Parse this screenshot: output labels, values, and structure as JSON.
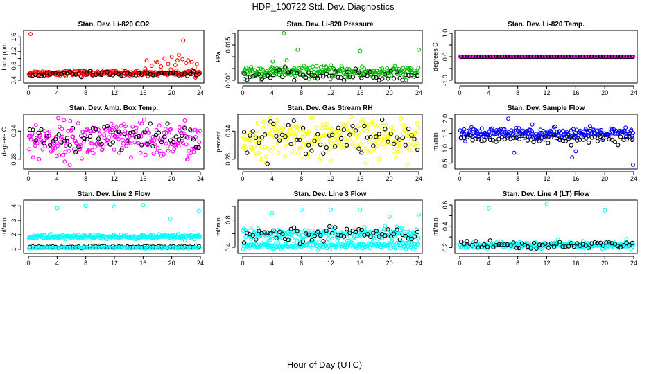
{
  "figure": {
    "title": "HDP_100722  Std. Dev. Diagnostics",
    "xlabel": "Hour of Day (UTC)"
  },
  "chart_data": [
    {
      "type": "scatter",
      "title": "Stan. Dev. Li-820 CO2",
      "ylabel": "Licor ppm",
      "xlim": [
        0,
        24
      ],
      "ylim": [
        0.4,
        1.7
      ],
      "xticks": [
        0,
        4,
        8,
        12,
        16,
        20,
        24
      ],
      "yticks": [
        0.4,
        0.6,
        0.8,
        1.0,
        1.2,
        1.4,
        1.6
      ],
      "ytick_labels": [
        "0.4",
        "",
        "0.8",
        "",
        "1.2",
        "",
        "1.6"
      ],
      "series": [
        {
          "name": "samples",
          "color": "#ff0000",
          "mean": 0.6,
          "sd": 0.035,
          "n": 240,
          "outliers": [
            [
              0.3,
              1.68
            ],
            [
              16.5,
              0.95
            ],
            [
              18,
              0.9
            ],
            [
              19,
              1.0
            ],
            [
              20,
              1.05
            ],
            [
              21,
              1.1
            ],
            [
              21.6,
              1.5
            ],
            [
              22.3,
              0.95
            ],
            [
              23.5,
              0.85
            ],
            [
              17.2,
              0.8
            ],
            [
              18.5,
              0.78
            ],
            [
              20.5,
              0.82
            ],
            [
              22,
              0.88
            ],
            [
              16.3,
              0.72
            ],
            [
              17.8,
              0.92
            ],
            [
              19.5,
              0.85
            ],
            [
              20.8,
              0.95
            ],
            [
              21.5,
              0.98
            ],
            [
              22.8,
              0.9
            ],
            [
              23.2,
              0.75
            ]
          ]
        },
        {
          "name": "line",
          "color": "#000000",
          "mean": 0.57,
          "sd": 0.03,
          "n": 60,
          "outliers": []
        }
      ]
    },
    {
      "type": "scatter",
      "title": "Stan. Dev. Li-820 Pressure",
      "ylabel": "kPa",
      "xlim": [
        0,
        24
      ],
      "ylim": [
        0,
        0.02
      ],
      "xticks": [
        0,
        4,
        8,
        12,
        16,
        20,
        24
      ],
      "yticks": [
        0.0,
        0.005,
        0.01,
        0.015,
        0.02
      ],
      "ytick_labels": [
        "0.000",
        "",
        "",
        "0.015",
        ""
      ],
      "series": [
        {
          "name": "samples",
          "color": "#00bb00",
          "mean": 0.0035,
          "sd": 0.0012,
          "n": 240,
          "outliers": [
            [
              4.1,
              0.008
            ],
            [
              5.6,
              0.0205
            ],
            [
              7.5,
              0.013
            ],
            [
              16,
              0.0125
            ],
            [
              24,
              0.013
            ],
            [
              6,
              0.0085
            ]
          ]
        },
        {
          "name": "line",
          "color": "#000000",
          "mean": 0.002,
          "sd": 0.0012,
          "n": 60,
          "outliers": []
        }
      ]
    },
    {
      "type": "scatter",
      "title": "Stan. Dev. Li-820 Temp.",
      "ylabel": "degrees C",
      "xlim": [
        0,
        24
      ],
      "ylim": [
        -1,
        1
      ],
      "xticks": [
        0,
        4,
        8,
        12,
        16,
        20,
        24
      ],
      "yticks": [
        -1.0,
        -0.5,
        0.0,
        0.5,
        1.0
      ],
      "ytick_labels": [
        "-1.0",
        "",
        "0.0",
        "",
        "1.0"
      ],
      "series": [
        {
          "name": "samples",
          "color": "#ff00ff",
          "mean": 0.0,
          "sd": 0.0,
          "n": 240,
          "outliers": []
        },
        {
          "name": "line",
          "color": "#000000",
          "mean": 0.0,
          "sd": 0.0,
          "n": 60,
          "outliers": []
        }
      ]
    },
    {
      "type": "scatter",
      "title": "Stan. Dev. Amb. Box Temp.",
      "ylabel": "degrees C",
      "xlim": [
        0,
        24
      ],
      "ylim": [
        0.265,
        0.37
      ],
      "xticks": [
        0,
        4,
        8,
        12,
        16,
        20,
        24
      ],
      "yticks": [
        0.28,
        0.31,
        0.34
      ],
      "ytick_labels": [
        "0.28",
        "",
        "0.34"
      ],
      "series": [
        {
          "name": "samples",
          "color": "#ff00ff",
          "mean": 0.32,
          "sd": 0.02,
          "n": 240,
          "outliers": []
        },
        {
          "name": "line",
          "color": "#000000",
          "mean": 0.322,
          "sd": 0.015,
          "n": 60,
          "outliers": []
        }
      ]
    },
    {
      "type": "scatter",
      "title": "Stan. Dev. Gas Stream RH",
      "ylabel": "percent",
      "xlim": [
        0,
        24
      ],
      "ylim": [
        0.265,
        0.37
      ],
      "xticks": [
        0,
        4,
        8,
        12,
        16,
        20,
        24
      ],
      "yticks": [
        0.28,
        0.31,
        0.34
      ],
      "ytick_labels": [
        "0.28",
        "",
        "0.34"
      ],
      "series": [
        {
          "name": "samples",
          "color": "#ffff00",
          "mean": 0.325,
          "sd": 0.02,
          "n": 240,
          "outliers": []
        },
        {
          "name": "line",
          "color": "#000000",
          "mean": 0.33,
          "sd": 0.018,
          "n": 60,
          "outliers": []
        }
      ]
    },
    {
      "type": "scatter",
      "title": "Stan. Dev. Sample Flow",
      "ylabel": "ml/min",
      "xlim": [
        0,
        24
      ],
      "ylim": [
        0.4,
        2.05
      ],
      "xticks": [
        0,
        4,
        8,
        12,
        16,
        20,
        24
      ],
      "yticks": [
        0.5,
        1.0,
        1.5,
        2.0
      ],
      "ytick_labels": [
        "0.5",
        "1.0",
        "1.5",
        "2.0"
      ],
      "series": [
        {
          "name": "samples",
          "color": "#0000ff",
          "mean": 1.5,
          "sd": 0.09,
          "n": 240,
          "outliers": [
            [
              6.7,
              2.0
            ],
            [
              16,
              0.9
            ],
            [
              15.5,
              0.7
            ],
            [
              23.9,
              0.45
            ],
            [
              7.5,
              0.85
            ],
            [
              10,
              1.8
            ]
          ]
        },
        {
          "name": "line",
          "color": "#000000",
          "mean": 1.3,
          "sd": 0.08,
          "n": 60,
          "outliers": []
        }
      ]
    },
    {
      "type": "scatter",
      "title": "Stan. Dev. Line 2 Flow",
      "ylabel": "ml/min",
      "xlim": [
        0,
        24
      ],
      "ylim": [
        0.9,
        4.2
      ],
      "xticks": [
        0,
        4,
        8,
        12,
        16,
        20,
        24
      ],
      "yticks": [
        1,
        2,
        3,
        4
      ],
      "ytick_labels": [
        "1",
        "2",
        "3",
        "4"
      ],
      "series": [
        {
          "name": "samples",
          "color": "#00ffff",
          "mean": 1.85,
          "sd": 0.08,
          "n": 240,
          "outliers": [
            [
              4,
              3.85
            ],
            [
              8,
              4.0
            ],
            [
              12,
              3.95
            ],
            [
              16,
              4.05
            ],
            [
              19.8,
              3.1
            ],
            [
              23.8,
              3.65
            ],
            [
              16.2,
              1.1
            ]
          ]
        },
        {
          "name": "line",
          "color": "#000000",
          "mean": 1.15,
          "sd": 0.03,
          "n": 60,
          "outliers": []
        },
        {
          "name": "baseline",
          "color": "#00ffff",
          "mean": 1.1,
          "sd": 0.02,
          "n": 120,
          "outliers": []
        }
      ]
    },
    {
      "type": "scatter",
      "title": "Stan. Dev. Line 3 Flow",
      "ylabel": "ml/min",
      "xlim": [
        0,
        24
      ],
      "ylim": [
        0.35,
        1.05
      ],
      "xticks": [
        0,
        4,
        8,
        12,
        16,
        20,
        24
      ],
      "yticks": [
        0.4,
        0.6,
        0.8,
        1.0
      ],
      "ytick_labels": [
        "0.4",
        "",
        "0.8",
        ""
      ],
      "series": [
        {
          "name": "samples",
          "color": "#00ffff",
          "mean": 0.6,
          "sd": 0.04,
          "n": 200,
          "outliers": [
            [
              4,
              0.9
            ],
            [
              8,
              0.95
            ],
            [
              12,
              0.95
            ],
            [
              16,
              0.95
            ],
            [
              20,
              0.85
            ],
            [
              24,
              0.88
            ],
            [
              21,
              0.7
            ]
          ]
        },
        {
          "name": "baseline",
          "color": "#00ffff",
          "mean": 0.43,
          "sd": 0.03,
          "n": 200,
          "outliers": []
        },
        {
          "name": "line",
          "color": "#000000",
          "mean": 0.6,
          "sd": 0.05,
          "n": 60,
          "outliers": []
        }
      ]
    },
    {
      "type": "scatter",
      "title": "Stan. Dev. Line 4 (LT) Flow",
      "ylabel": "ml/min",
      "xlim": [
        0,
        24
      ],
      "ylim": [
        0.17,
        0.62
      ],
      "xticks": [
        0,
        4,
        8,
        12,
        16,
        20,
        24
      ],
      "yticks": [
        0.2,
        0.3,
        0.4,
        0.5,
        0.6
      ],
      "ytick_labels": [
        "0.2",
        "",
        "0.4",
        "",
        "0.6"
      ],
      "series": [
        {
          "name": "samples",
          "color": "#00ffff",
          "mean": 0.22,
          "sd": 0.015,
          "n": 240,
          "outliers": [
            [
              4,
              0.57
            ],
            [
              12,
              0.61
            ],
            [
              20,
              0.55
            ],
            [
              23,
              0.28
            ],
            [
              17,
              0.26
            ]
          ]
        },
        {
          "name": "line",
          "color": "#000000",
          "mean": 0.225,
          "sd": 0.02,
          "n": 60,
          "outliers": []
        }
      ]
    }
  ]
}
